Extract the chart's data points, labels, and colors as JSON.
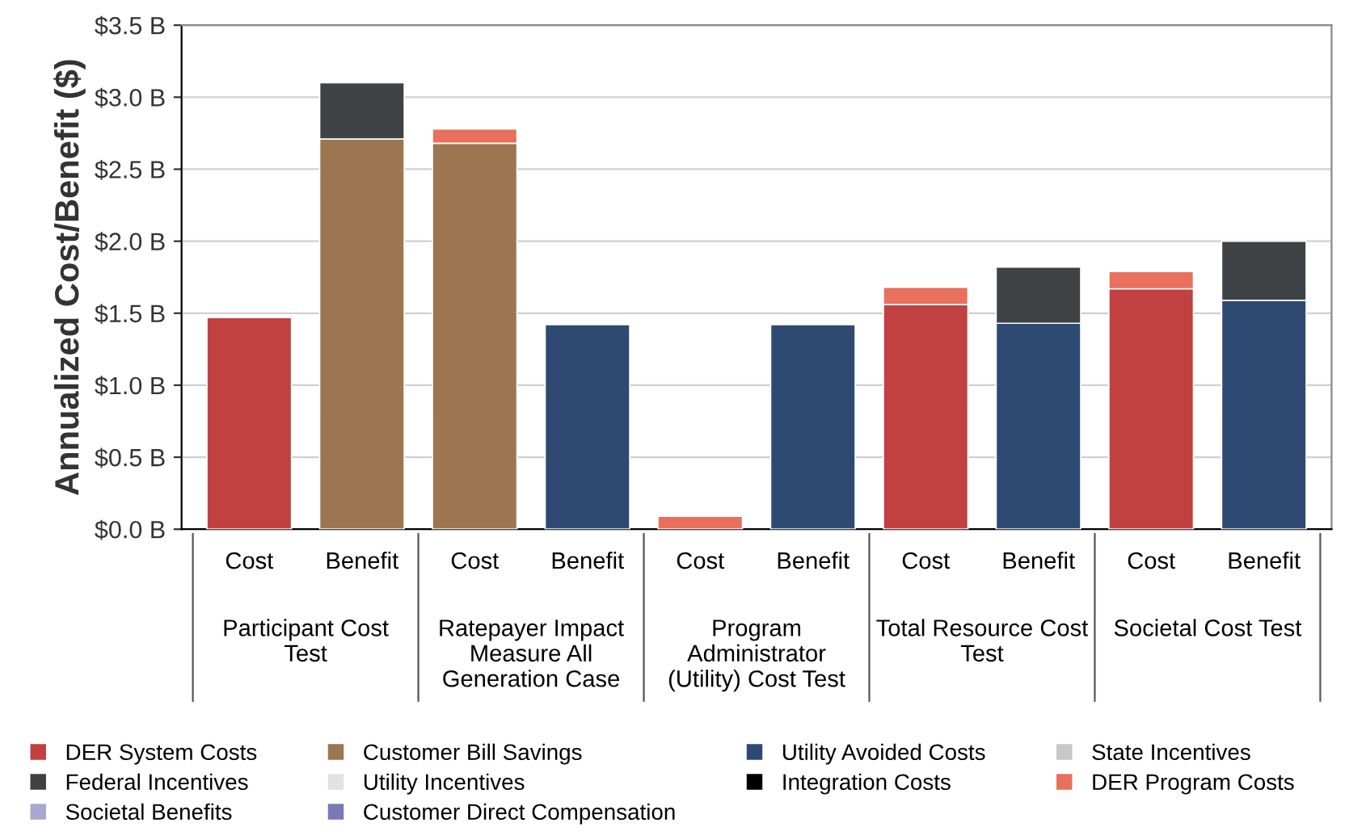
{
  "chart_data": {
    "type": "bar",
    "stacked": true,
    "ylabel": "Annualized Cost/Benefit ($)",
    "categories": [
      "Cost",
      "Benefit",
      "Cost",
      "Benefit",
      "Cost",
      "Benefit",
      "Cost",
      "Benefit",
      "Cost",
      "Benefit"
    ],
    "annotations": [
      "Participant Cost Test",
      "Ratepayer Impact Measure All Generation Case",
      "Program Administrator (Utility) Cost Test",
      "Total Resource Cost Test",
      "Societal Cost Test"
    ],
    "series": [
      {
        "name": "DER System Costs",
        "color": "#c0413f",
        "values": [
          1.47,
          null,
          null,
          null,
          null,
          null,
          1.56,
          null,
          1.67,
          null
        ]
      },
      {
        "name": "Customer Bill Savings",
        "color": "#9b7650",
        "values": [
          null,
          2.71,
          2.68,
          null,
          null,
          null,
          null,
          null,
          null,
          null
        ]
      },
      {
        "name": "Utility Avoided Costs",
        "color": "#2e4a72",
        "values": [
          null,
          null,
          null,
          1.42,
          null,
          1.42,
          null,
          1.43,
          null,
          1.59
        ]
      },
      {
        "name": "State Incentives",
        "color": "#c8c8c8",
        "values": [
          null,
          null,
          null,
          null,
          null,
          null,
          null,
          null,
          null,
          null
        ]
      },
      {
        "name": "Federal Incentives",
        "color": "#3f4245",
        "values": [
          null,
          0.39,
          null,
          null,
          null,
          null,
          null,
          0.39,
          null,
          0.41
        ]
      },
      {
        "name": "Utility Incentives",
        "color": "#e2e2e2",
        "values": [
          null,
          null,
          null,
          null,
          null,
          null,
          null,
          null,
          null,
          null
        ]
      },
      {
        "name": "Integration Costs",
        "color": "#000000",
        "values": [
          null,
          null,
          null,
          null,
          null,
          null,
          null,
          null,
          null,
          null
        ]
      },
      {
        "name": "DER Program Costs",
        "color": "#e8705c",
        "values": [
          null,
          null,
          0.1,
          null,
          0.09,
          null,
          0.12,
          null,
          0.12,
          null
        ]
      },
      {
        "name": "Societal Benefits",
        "color": "#a9a6cf",
        "values": [
          null,
          null,
          null,
          null,
          null,
          null,
          null,
          null,
          null,
          null
        ]
      },
      {
        "name": "Customer Direct Compensation",
        "color": "#7a78b8",
        "values": [
          null,
          null,
          null,
          null,
          null,
          null,
          null,
          null,
          null,
          null
        ]
      }
    ],
    "ylim": [
      0,
      3.5
    ],
    "yticks": [
      {
        "value": 0,
        "label": "$0.0 B"
      },
      {
        "value": 0.5,
        "label": "$0.5 B"
      },
      {
        "value": 1.0,
        "label": "$1.0 B"
      },
      {
        "value": 1.5,
        "label": "$1.5 B"
      },
      {
        "value": 2.0,
        "label": "$2.0 B"
      },
      {
        "value": 2.5,
        "label": "$2.5 B"
      },
      {
        "value": 3.0,
        "label": "$3.0 B"
      },
      {
        "value": 3.5,
        "label": "$3.5 B"
      }
    ],
    "grid": "y",
    "legend": "bottom"
  }
}
